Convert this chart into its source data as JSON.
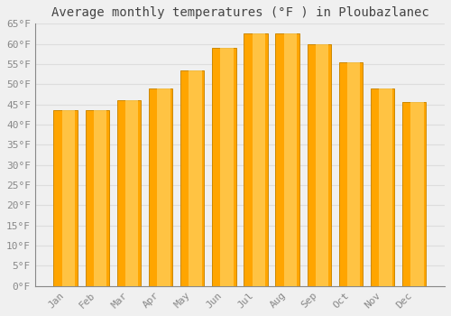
{
  "title": "Average monthly temperatures (°F ) in Ploubazlanec",
  "months": [
    "Jan",
    "Feb",
    "Mar",
    "Apr",
    "May",
    "Jun",
    "Jul",
    "Aug",
    "Sep",
    "Oct",
    "Nov",
    "Dec"
  ],
  "values": [
    43.5,
    43.5,
    46.0,
    49.0,
    53.5,
    59.0,
    62.5,
    62.5,
    60.0,
    55.5,
    49.0,
    45.5
  ],
  "bar_color": "#FFA500",
  "bar_edge_color": "#CC8800",
  "bar_highlight_color": "#FFD060",
  "background_color": "#F0F0F0",
  "grid_color": "#DDDDDD",
  "ylim": [
    0,
    65
  ],
  "yticks": [
    0,
    5,
    10,
    15,
    20,
    25,
    30,
    35,
    40,
    45,
    50,
    55,
    60,
    65
  ],
  "ytick_labels": [
    "0°F",
    "5°F",
    "10°F",
    "15°F",
    "20°F",
    "25°F",
    "30°F",
    "35°F",
    "40°F",
    "45°F",
    "50°F",
    "55°F",
    "60°F",
    "65°F"
  ],
  "title_fontsize": 10,
  "tick_fontsize": 8,
  "tick_color": "#888888",
  "title_color": "#444444"
}
